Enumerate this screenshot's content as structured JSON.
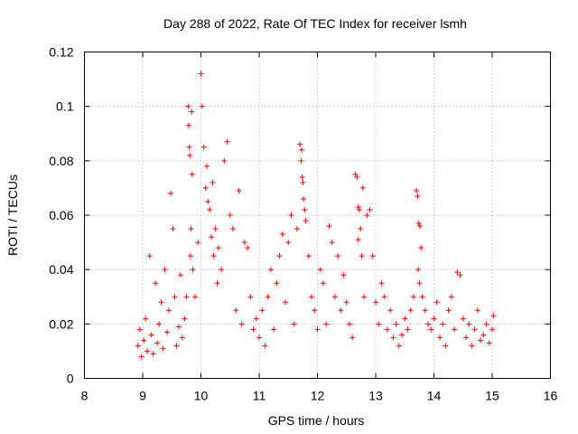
{
  "chart_data": {
    "type": "scatter",
    "title": "Day 288 of 2022, Rate Of TEC Index for receiver lsmh",
    "xlabel": "GPS time / hours",
    "ylabel": "ROTI / TECUs",
    "xlim": [
      8,
      16
    ],
    "ylim": [
      0,
      0.12
    ],
    "xticks": [
      "8",
      "9",
      "10",
      "11",
      "12",
      "13",
      "14",
      "15",
      "16"
    ],
    "yticks": [
      "0",
      "0.02",
      "0.04",
      "0.06",
      "0.08",
      "0.1",
      "0.12"
    ],
    "grid": true,
    "marker": "+",
    "color": "#ff0000",
    "x": [
      8.92,
      8.95,
      8.98,
      9.02,
      9.05,
      9.08,
      9.12,
      9.15,
      9.18,
      9.22,
      9.25,
      9.28,
      9.32,
      9.35,
      9.38,
      9.42,
      9.45,
      9.48,
      9.52,
      9.55,
      9.58,
      9.62,
      9.65,
      9.68,
      9.72,
      9.75,
      9.78,
      9.79,
      9.8,
      9.81,
      9.82,
      9.83,
      9.84,
      9.85,
      9.86,
      9.9,
      9.95,
      10.0,
      10.02,
      10.05,
      10.08,
      10.1,
      10.12,
      10.15,
      10.18,
      10.2,
      10.22,
      10.25,
      10.28,
      10.3,
      10.35,
      10.4,
      10.45,
      10.5,
      10.55,
      10.6,
      10.65,
      10.7,
      10.75,
      10.8,
      10.85,
      10.9,
      10.95,
      11.0,
      11.05,
      11.1,
      11.15,
      11.2,
      11.25,
      11.3,
      11.35,
      11.4,
      11.45,
      11.5,
      11.55,
      11.6,
      11.65,
      11.7,
      11.72,
      11.74,
      11.76,
      11.78,
      11.8,
      11.75,
      11.73,
      11.85,
      11.9,
      11.95,
      12.0,
      12.05,
      12.1,
      12.15,
      12.2,
      12.25,
      12.3,
      12.35,
      12.4,
      12.45,
      12.5,
      12.55,
      12.6,
      12.65,
      12.68,
      12.7,
      12.72,
      12.74,
      12.76,
      12.78,
      12.7,
      12.8,
      12.85,
      12.9,
      12.95,
      13.0,
      13.05,
      13.1,
      13.15,
      13.2,
      13.25,
      13.3,
      13.35,
      13.4,
      13.45,
      13.5,
      13.55,
      13.6,
      13.65,
      13.7,
      13.72,
      13.74,
      13.76,
      13.78,
      13.73,
      13.75,
      13.8,
      13.85,
      13.9,
      13.95,
      14.0,
      14.05,
      14.1,
      14.15,
      14.2,
      14.25,
      14.3,
      14.35,
      14.4,
      14.45,
      14.5,
      14.55,
      14.6,
      14.65,
      14.7,
      14.75,
      14.8,
      14.85,
      14.9,
      14.95,
      15.0,
      15.02
    ],
    "y": [
      0.012,
      0.018,
      0.008,
      0.014,
      0.022,
      0.01,
      0.045,
      0.016,
      0.009,
      0.035,
      0.013,
      0.02,
      0.028,
      0.011,
      0.04,
      0.017,
      0.025,
      0.068,
      0.055,
      0.03,
      0.012,
      0.019,
      0.038,
      0.015,
      0.022,
      0.03,
      0.1,
      0.093,
      0.085,
      0.082,
      0.045,
      0.055,
      0.098,
      0.075,
      0.04,
      0.03,
      0.05,
      0.112,
      0.1,
      0.085,
      0.07,
      0.078,
      0.065,
      0.062,
      0.052,
      0.072,
      0.045,
      0.055,
      0.035,
      0.048,
      0.04,
      0.08,
      0.087,
      0.06,
      0.055,
      0.025,
      0.069,
      0.02,
      0.05,
      0.048,
      0.03,
      0.018,
      0.022,
      0.015,
      0.025,
      0.012,
      0.03,
      0.04,
      0.018,
      0.035,
      0.045,
      0.053,
      0.028,
      0.05,
      0.06,
      0.02,
      0.055,
      0.086,
      0.08,
      0.074,
      0.066,
      0.062,
      0.058,
      0.072,
      0.084,
      0.045,
      0.03,
      0.025,
      0.018,
      0.04,
      0.035,
      0.02,
      0.056,
      0.05,
      0.03,
      0.045,
      0.025,
      0.038,
      0.028,
      0.02,
      0.015,
      0.075,
      0.074,
      0.063,
      0.062,
      0.055,
      0.045,
      0.07,
      0.051,
      0.03,
      0.06,
      0.062,
      0.045,
      0.028,
      0.02,
      0.035,
      0.03,
      0.018,
      0.025,
      0.015,
      0.02,
      0.012,
      0.016,
      0.022,
      0.018,
      0.025,
      0.03,
      0.069,
      0.067,
      0.057,
      0.056,
      0.048,
      0.04,
      0.035,
      0.03,
      0.025,
      0.02,
      0.018,
      0.022,
      0.028,
      0.015,
      0.02,
      0.012,
      0.025,
      0.03,
      0.018,
      0.039,
      0.038,
      0.022,
      0.015,
      0.02,
      0.012,
      0.018,
      0.025,
      0.014,
      0.016,
      0.02,
      0.013,
      0.018,
      0.023
    ]
  }
}
